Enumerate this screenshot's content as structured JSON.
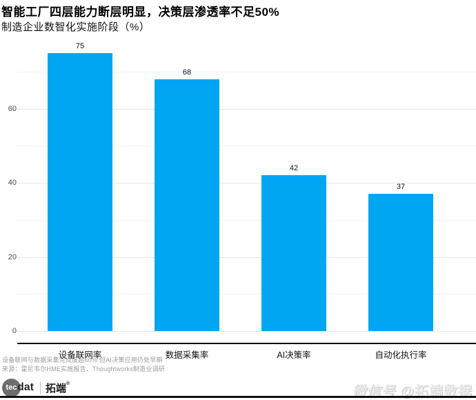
{
  "header": {
    "title": "智能工厂四层能力断层明显，决策层渗透率不足50%",
    "subtitle": "制造企业数智化实施阶段（%）"
  },
  "chart_data": {
    "type": "bar",
    "title": "智能工厂四层能力断层明显，决策层渗透率不足50%",
    "subtitle": "制造企业数智化实施阶段（%）",
    "categories": [
      "设备联网率",
      "数据采集率",
      "AI决策率",
      "自动化执行率"
    ],
    "values": [
      75,
      68,
      42,
      37
    ],
    "value_labels": [
      75,
      68,
      42,
      37
    ],
    "bar_color": "#00a6f2",
    "xlabel": "",
    "ylabel": "",
    "ylim": [
      0,
      78
    ],
    "yticks_major": [
      0,
      20,
      40,
      60
    ],
    "yticks_minor": [
      10,
      30,
      50,
      70
    ],
    "grid": "horizontal",
    "legend": "none"
  },
  "footnote": {
    "line1": "设备联网与数据采集完成度超60% 但AI决策应用仍处早期",
    "line2": "来源：霍尼韦尔HME实施报告、Thoughtworks制造业调研"
  },
  "footer": {
    "logo_circle_text": "tec",
    "logo_rest_text": "dat",
    "brand_name": "拓端",
    "reg_mark": "®",
    "watermark_prefix": "微信号",
    "watermark_suffix": "@拓端数据"
  }
}
